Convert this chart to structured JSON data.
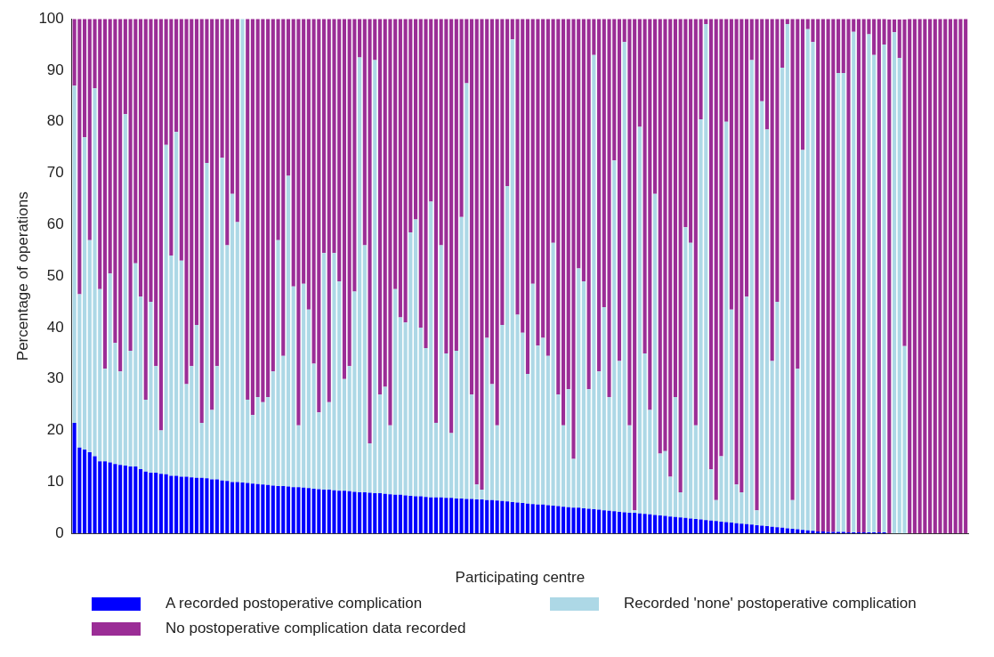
{
  "chart_data": {
    "type": "bar",
    "stacked": true,
    "xlabel": "Participating centre",
    "ylabel": "Percentage of operations",
    "ylim": [
      0,
      100
    ],
    "yticks": [
      0,
      10,
      20,
      30,
      40,
      50,
      60,
      70,
      80,
      90,
      100
    ],
    "grid": false,
    "legend": "bottom",
    "categories": [
      null,
      null,
      null,
      null,
      null,
      null,
      null,
      null,
      null,
      null,
      null,
      null,
      null,
      null,
      null,
      null,
      null,
      null,
      null,
      null,
      null,
      null,
      null,
      null,
      null,
      null,
      null,
      null,
      null,
      null,
      null,
      null,
      null,
      null,
      null,
      null,
      null,
      null,
      null,
      null,
      null,
      null,
      null,
      null,
      null,
      null,
      null,
      null,
      null,
      null,
      null,
      null,
      null,
      null,
      null,
      null,
      null,
      null,
      null,
      null,
      null,
      null,
      null,
      null,
      null,
      null,
      null,
      null,
      null,
      null,
      null,
      null,
      null,
      null,
      null,
      null,
      null,
      null,
      null,
      null,
      null,
      null,
      null,
      null,
      null,
      null,
      null,
      null,
      null,
      null,
      null,
      null,
      null,
      null,
      null,
      null,
      null,
      null,
      null,
      null,
      null,
      null,
      null,
      null,
      null,
      null,
      null,
      null,
      null,
      null,
      null,
      null,
      null,
      null,
      null,
      null,
      null,
      null,
      null,
      null,
      null,
      null,
      null,
      null,
      null,
      null,
      null,
      null,
      null,
      null,
      null,
      null,
      null,
      null,
      null,
      null,
      null,
      null,
      null,
      null,
      null,
      null,
      null,
      null,
      null,
      null,
      null,
      null,
      null,
      null,
      null,
      null,
      null,
      null,
      null,
      null,
      null,
      null,
      null,
      null,
      null,
      null,
      null,
      null,
      null,
      null,
      null,
      null,
      null,
      null,
      null,
      null,
      null,
      null,
      null,
      null
    ],
    "series": [
      {
        "name": "A recorded postoperative complication",
        "color": "#0000ff",
        "values": [
          21.5,
          16.7,
          16.3,
          15.8,
          15,
          14,
          14,
          13.8,
          13.5,
          13.3,
          13.2,
          13,
          13,
          12.5,
          12,
          11.8,
          11.8,
          11.6,
          11.5,
          11.2,
          11.2,
          11,
          11,
          10.9,
          10.8,
          10.8,
          10.7,
          10.5,
          10.5,
          10.3,
          10.2,
          10,
          10,
          9.9,
          9.8,
          9.7,
          9.6,
          9.5,
          9.4,
          9.3,
          9.2,
          9.2,
          9.1,
          9,
          9,
          8.9,
          8.8,
          8.7,
          8.6,
          8.5,
          8.5,
          8.4,
          8.3,
          8.3,
          8.2,
          8.1,
          8,
          8,
          7.9,
          7.8,
          7.8,
          7.7,
          7.6,
          7.5,
          7.5,
          7.4,
          7.3,
          7.2,
          7.2,
          7.1,
          7,
          7,
          7,
          6.9,
          6.9,
          6.8,
          6.8,
          6.7,
          6.7,
          6.6,
          6.6,
          6.5,
          6.5,
          6.4,
          6.3,
          6.2,
          6.1,
          6,
          5.9,
          5.8,
          5.7,
          5.6,
          5.6,
          5.5,
          5.4,
          5.3,
          5.2,
          5.1,
          5,
          5,
          4.9,
          4.8,
          4.7,
          4.6,
          4.5,
          4.4,
          4.3,
          4.2,
          4.1,
          4,
          4,
          3.9,
          3.8,
          3.7,
          3.6,
          3.5,
          3.4,
          3.3,
          3.2,
          3.1,
          3,
          2.9,
          2.8,
          2.7,
          2.6,
          2.5,
          2.4,
          2.3,
          2.2,
          2.1,
          2,
          1.9,
          1.8,
          1.7,
          1.6,
          1.5,
          1.4,
          1.3,
          1.2,
          1.1,
          1,
          0.9,
          0.8,
          0.7,
          0.6,
          0.5,
          0.4,
          0.4,
          0.3,
          0.3,
          0.3,
          0.3,
          0.2,
          0.2,
          0.2,
          0.2,
          0.2,
          0.2,
          0.2,
          0.2,
          null,
          null,
          null,
          null,
          0,
          0,
          0,
          0,
          0,
          0,
          0,
          0,
          0,
          0,
          0,
          0
        ]
      },
      {
        "name": "Recorded 'none' postoperative complication",
        "color": "#add8e6",
        "values": [
          65.5,
          29.8,
          60.7,
          41.2,
          71.5,
          33.5,
          18,
          36.7,
          23.5,
          18.2,
          68.3,
          22.5,
          39.5,
          33.5,
          14,
          33.2,
          20.7,
          8.4,
          64,
          42.8,
          66.8,
          42,
          18,
          21.6,
          29.7,
          10.7,
          61.3,
          13.5,
          22,
          62.7,
          45.8,
          56,
          50.5,
          90.1,
          16.2,
          13.3,
          16.9,
          16,
          17.1,
          22.2,
          47.8,
          25.3,
          60.4,
          39,
          12,
          39.6,
          34.7,
          24.3,
          14.9,
          46,
          17,
          46.1,
          40.7,
          21.7,
          24.3,
          38.9,
          84.5,
          48,
          9.6,
          84.2,
          19.2,
          20.8,
          13.4,
          40,
          34.5,
          33.6,
          51.2,
          53.8,
          32.8,
          28.9,
          57.5,
          14.5,
          49,
          28.1,
          12.6,
          28.7,
          54.7,
          80.8,
          20.3,
          2.9,
          1.9,
          31.5,
          22.5,
          14.6,
          34.2,
          61.3,
          89.9,
          36.5,
          33.1,
          25.2,
          42.8,
          30.9,
          32.4,
          29,
          51.1,
          21.7,
          15.8,
          22.9,
          9.5,
          46.5,
          44.1,
          23.2,
          88.3,
          26.9,
          39.5,
          22.1,
          68.2,
          29.3,
          91.4,
          17,
          0.5,
          75.1,
          31.2,
          20.3,
          62.4,
          12,
          12.6,
          7.7,
          23.3,
          4.9,
          56.5,
          53.6,
          18.2,
          77.8,
          96.4,
          10,
          4.1,
          12.7,
          77.8,
          41.4,
          7.5,
          6.1,
          44.2,
          90.3,
          2.9,
          82.5,
          77.1,
          32.2,
          43.8,
          89.4,
          98,
          5.6,
          31.2,
          73.8,
          97.4,
          95,
          0,
          0,
          0,
          0,
          89.2,
          89.2,
          0,
          97.3,
          0,
          0,
          96.8,
          92.8,
          0,
          94.8,
          0,
          97.4,
          92.4,
          36.4,
          0,
          0,
          0,
          0,
          0,
          0,
          0,
          0,
          0,
          0,
          0,
          0
        ]
      },
      {
        "name": "No postoperative complication data recorded",
        "color": "#9b2d96",
        "values": [
          13,
          53.5,
          23,
          43,
          13.5,
          52.5,
          68,
          49.5,
          63,
          68.5,
          18.5,
          64.5,
          47.5,
          54,
          74,
          55,
          67.5,
          80,
          24.5,
          46,
          22,
          47,
          71,
          67.5,
          59.5,
          78.5,
          28,
          76,
          67.5,
          27,
          44,
          34,
          39.5,
          0,
          74,
          77,
          73.5,
          74.5,
          73.5,
          68.5,
          43,
          65.5,
          30.5,
          52,
          79,
          51.5,
          56.5,
          67,
          76.5,
          45.5,
          74.5,
          45.5,
          51,
          70,
          67.5,
          53,
          7.5,
          44,
          82.5,
          8,
          73,
          71.5,
          79,
          52.5,
          58,
          59,
          41.5,
          39,
          60,
          64,
          35.5,
          78.5,
          44,
          65,
          80.5,
          64.5,
          38.5,
          12.5,
          73,
          90.5,
          91.5,
          62,
          71,
          79,
          59.5,
          32.5,
          4,
          57.5,
          61,
          69,
          51.5,
          63.5,
          62,
          65.5,
          43.5,
          73,
          79,
          72,
          85.5,
          48.5,
          51,
          72,
          7,
          68.5,
          56,
          73.5,
          27.5,
          66.5,
          4.5,
          79,
          95.5,
          21,
          65,
          76,
          34,
          84.5,
          84,
          89,
          73.5,
          92,
          40.5,
          43.5,
          79,
          19.5,
          1,
          87.5,
          93.5,
          85,
          20,
          56.5,
          90.5,
          92,
          54,
          8,
          95.5,
          16,
          21.5,
          66.5,
          55,
          9.5,
          1,
          93.5,
          68,
          25.5,
          2,
          4.5,
          99.6,
          99.6,
          99.7,
          99.7,
          10.5,
          10.5,
          99.8,
          2.5,
          99.8,
          99.8,
          3,
          7,
          99.8,
          5,
          99.9,
          2.5,
          7.5,
          63.5,
          100,
          100,
          100,
          100,
          100,
          100,
          100,
          100,
          100,
          100,
          100,
          100
        ]
      }
    ]
  }
}
